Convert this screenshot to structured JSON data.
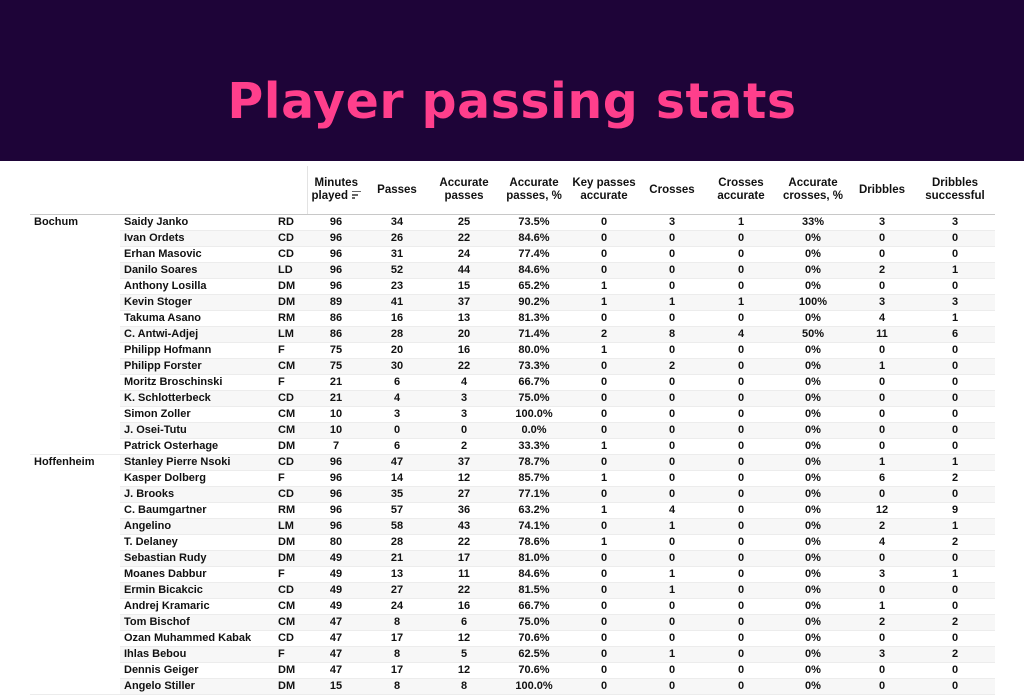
{
  "header": {
    "title": "Player passing stats",
    "bg_color": "#1e0438",
    "title_color": "#ff3f8c"
  },
  "chart_data": {
    "type": "table",
    "columns": [
      "Minutes played",
      "Passes",
      "Accurate passes",
      "Accurate passes, %",
      "Key passes accurate",
      "Crosses",
      "Crosses accurate",
      "Accurate crosses, %",
      "Dribbles",
      "Dribbles successful"
    ],
    "sort_column": "Minutes played",
    "sort_icon": "sort-descending-icon",
    "rows": [
      {
        "team": "Bochum",
        "player": "Saidy Janko",
        "pos": "RD",
        "values": [
          "96",
          "34",
          "25",
          "73.5%",
          "0",
          "3",
          "1",
          "33%",
          "3",
          "3"
        ]
      },
      {
        "team": "",
        "player": "Ivan Ordets",
        "pos": "CD",
        "values": [
          "96",
          "26",
          "22",
          "84.6%",
          "0",
          "0",
          "0",
          "0%",
          "0",
          "0"
        ]
      },
      {
        "team": "",
        "player": "Erhan Masovic",
        "pos": "CD",
        "values": [
          "96",
          "31",
          "24",
          "77.4%",
          "0",
          "0",
          "0",
          "0%",
          "0",
          "0"
        ]
      },
      {
        "team": "",
        "player": "Danilo Soares",
        "pos": "LD",
        "values": [
          "96",
          "52",
          "44",
          "84.6%",
          "0",
          "0",
          "0",
          "0%",
          "2",
          "1"
        ]
      },
      {
        "team": "",
        "player": "Anthony Losilla",
        "pos": "DM",
        "values": [
          "96",
          "23",
          "15",
          "65.2%",
          "1",
          "0",
          "0",
          "0%",
          "0",
          "0"
        ]
      },
      {
        "team": "",
        "player": "Kevin Stoger",
        "pos": "DM",
        "values": [
          "89",
          "41",
          "37",
          "90.2%",
          "1",
          "1",
          "1",
          "100%",
          "3",
          "3"
        ]
      },
      {
        "team": "",
        "player": "Takuma Asano",
        "pos": "RM",
        "values": [
          "86",
          "16",
          "13",
          "81.3%",
          "0",
          "0",
          "0",
          "0%",
          "4",
          "1"
        ]
      },
      {
        "team": "",
        "player": "C. Antwi-Adjej",
        "pos": "LM",
        "values": [
          "86",
          "28",
          "20",
          "71.4%",
          "2",
          "8",
          "4",
          "50%",
          "11",
          "6"
        ]
      },
      {
        "team": "",
        "player": "Philipp Hofmann",
        "pos": "F",
        "values": [
          "75",
          "20",
          "16",
          "80.0%",
          "1",
          "0",
          "0",
          "0%",
          "0",
          "0"
        ]
      },
      {
        "team": "",
        "player": "Philipp Forster",
        "pos": "CM",
        "values": [
          "75",
          "30",
          "22",
          "73.3%",
          "0",
          "2",
          "0",
          "0%",
          "1",
          "0"
        ]
      },
      {
        "team": "",
        "player": "Moritz Broschinski",
        "pos": "F",
        "values": [
          "21",
          "6",
          "4",
          "66.7%",
          "0",
          "0",
          "0",
          "0%",
          "0",
          "0"
        ]
      },
      {
        "team": "",
        "player": "K. Schlotterbeck",
        "pos": "CD",
        "values": [
          "21",
          "4",
          "3",
          "75.0%",
          "0",
          "0",
          "0",
          "0%",
          "0",
          "0"
        ]
      },
      {
        "team": "",
        "player": "Simon Zoller",
        "pos": "CM",
        "values": [
          "10",
          "3",
          "3",
          "100.0%",
          "0",
          "0",
          "0",
          "0%",
          "0",
          "0"
        ]
      },
      {
        "team": "",
        "player": "J. Osei-Tutu",
        "pos": "CM",
        "values": [
          "10",
          "0",
          "0",
          "0.0%",
          "0",
          "0",
          "0",
          "0%",
          "0",
          "0"
        ]
      },
      {
        "team": "",
        "player": "Patrick Osterhage",
        "pos": "DM",
        "values": [
          "7",
          "6",
          "2",
          "33.3%",
          "1",
          "0",
          "0",
          "0%",
          "0",
          "0"
        ]
      },
      {
        "team": "Hoffenheim",
        "player": "Stanley Pierre Nsoki",
        "pos": "CD",
        "values": [
          "96",
          "47",
          "37",
          "78.7%",
          "0",
          "0",
          "0",
          "0%",
          "1",
          "1"
        ]
      },
      {
        "team": "",
        "player": "Kasper Dolberg",
        "pos": "F",
        "values": [
          "96",
          "14",
          "12",
          "85.7%",
          "1",
          "0",
          "0",
          "0%",
          "6",
          "2"
        ]
      },
      {
        "team": "",
        "player": "J. Brooks",
        "pos": "CD",
        "values": [
          "96",
          "35",
          "27",
          "77.1%",
          "0",
          "0",
          "0",
          "0%",
          "0",
          "0"
        ]
      },
      {
        "team": "",
        "player": "C. Baumgartner",
        "pos": "RM",
        "values": [
          "96",
          "57",
          "36",
          "63.2%",
          "1",
          "4",
          "0",
          "0%",
          "12",
          "9"
        ]
      },
      {
        "team": "",
        "player": "Angelino",
        "pos": "LM",
        "values": [
          "96",
          "58",
          "43",
          "74.1%",
          "0",
          "1",
          "0",
          "0%",
          "2",
          "1"
        ]
      },
      {
        "team": "",
        "player": "T. Delaney",
        "pos": "DM",
        "values": [
          "80",
          "28",
          "22",
          "78.6%",
          "1",
          "0",
          "0",
          "0%",
          "4",
          "2"
        ]
      },
      {
        "team": "",
        "player": "Sebastian Rudy",
        "pos": "DM",
        "values": [
          "49",
          "21",
          "17",
          "81.0%",
          "0",
          "0",
          "0",
          "0%",
          "0",
          "0"
        ]
      },
      {
        "team": "",
        "player": "Moanes Dabbur",
        "pos": "F",
        "values": [
          "49",
          "13",
          "11",
          "84.6%",
          "0",
          "1",
          "0",
          "0%",
          "3",
          "1"
        ]
      },
      {
        "team": "",
        "player": "Ermin Bicakcic",
        "pos": "CD",
        "values": [
          "49",
          "27",
          "22",
          "81.5%",
          "0",
          "1",
          "0",
          "0%",
          "0",
          "0"
        ]
      },
      {
        "team": "",
        "player": "Andrej Kramaric",
        "pos": "CM",
        "values": [
          "49",
          "24",
          "16",
          "66.7%",
          "0",
          "0",
          "0",
          "0%",
          "1",
          "0"
        ]
      },
      {
        "team": "",
        "player": "Tom Bischof",
        "pos": "CM",
        "values": [
          "47",
          "8",
          "6",
          "75.0%",
          "0",
          "0",
          "0",
          "0%",
          "2",
          "2"
        ]
      },
      {
        "team": "",
        "player": "Ozan Muhammed Kabak",
        "pos": "CD",
        "values": [
          "47",
          "17",
          "12",
          "70.6%",
          "0",
          "0",
          "0",
          "0%",
          "0",
          "0"
        ]
      },
      {
        "team": "",
        "player": "Ihlas Bebou",
        "pos": "F",
        "values": [
          "47",
          "8",
          "5",
          "62.5%",
          "0",
          "1",
          "0",
          "0%",
          "3",
          "2"
        ]
      },
      {
        "team": "",
        "player": "Dennis Geiger",
        "pos": "DM",
        "values": [
          "47",
          "17",
          "12",
          "70.6%",
          "0",
          "0",
          "0",
          "0%",
          "0",
          "0"
        ]
      },
      {
        "team": "",
        "player": "Angelo Stiller",
        "pos": "DM",
        "values": [
          "15",
          "8",
          "8",
          "100.0%",
          "0",
          "0",
          "0",
          "0%",
          "0",
          "0"
        ]
      }
    ]
  }
}
